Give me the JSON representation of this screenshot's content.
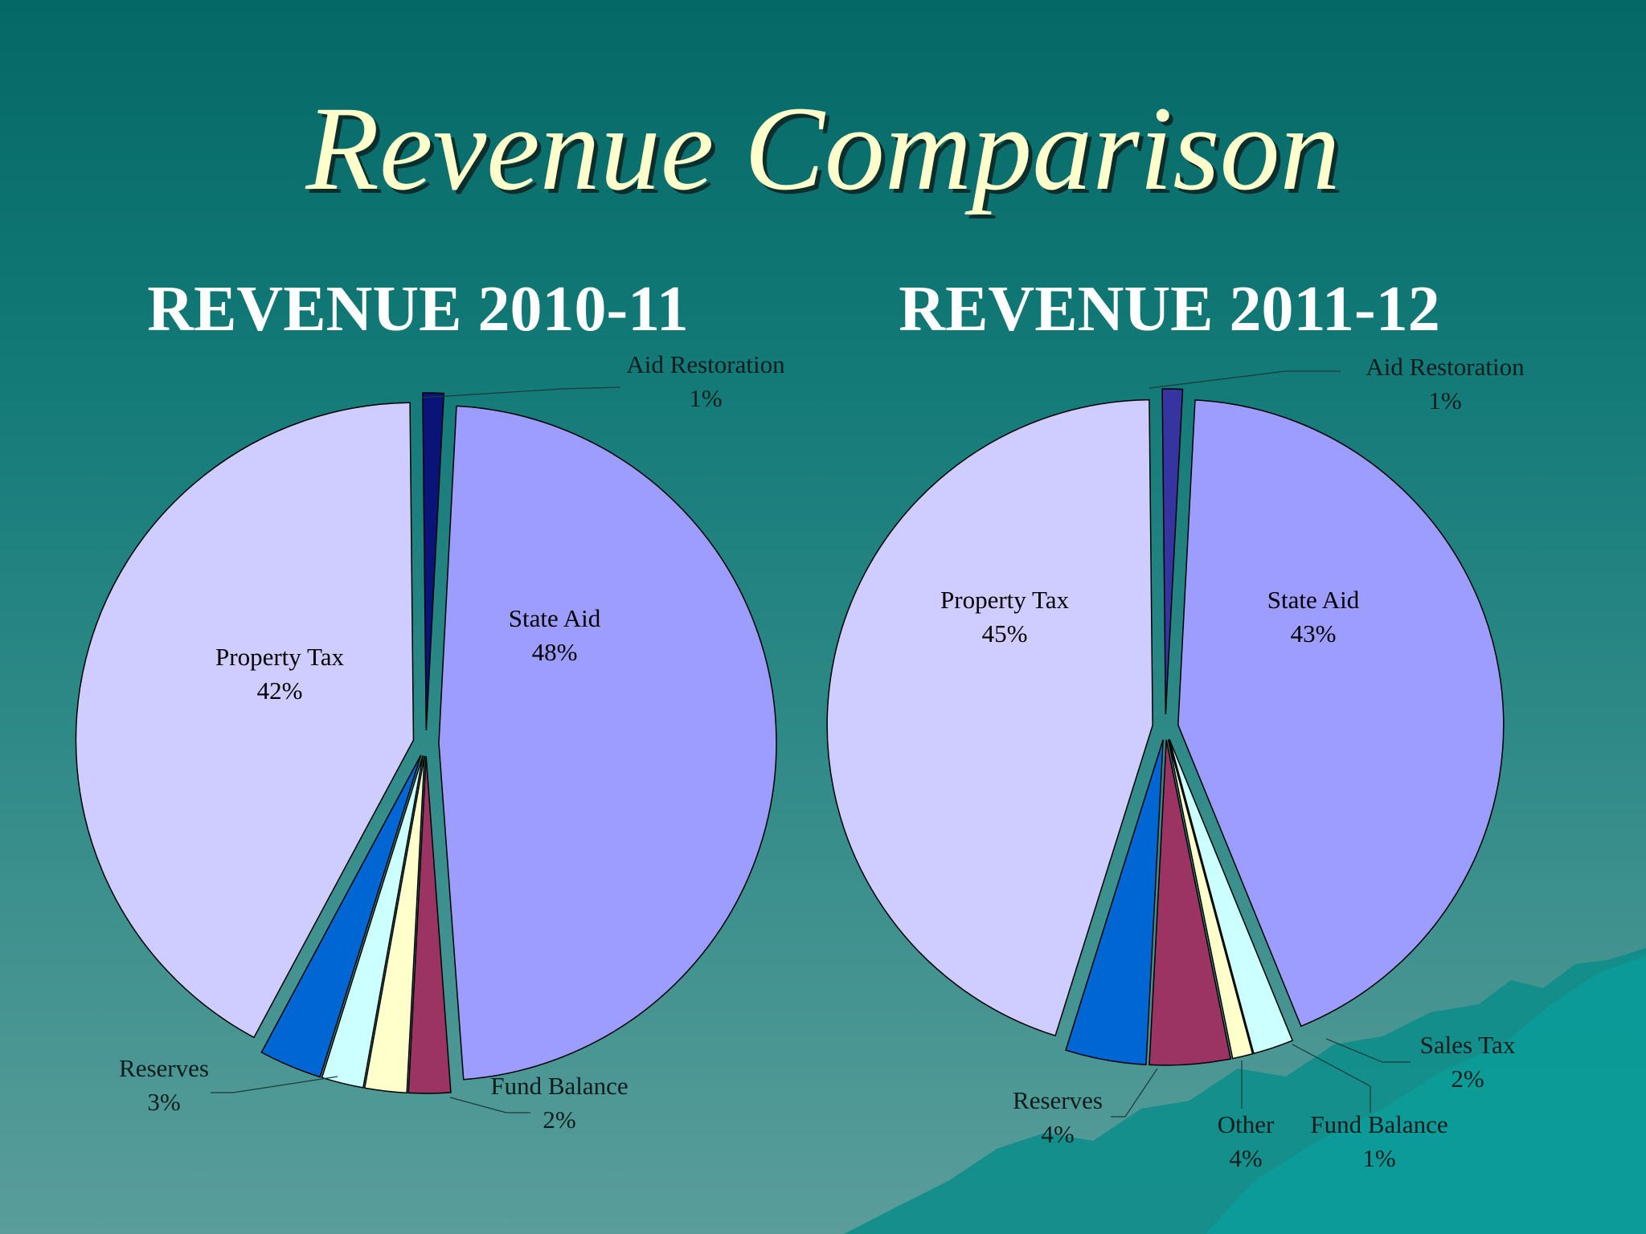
{
  "slide": {
    "title": "Revenue Comparison"
  },
  "colors": {
    "background_top": "#046866",
    "background_bottom": "#5a9d9b",
    "title": "#ffffcc",
    "state_aid": "#9d9cff",
    "property_tax": "#cfcdff",
    "aid_restoration_2010": "#0a1478",
    "aid_restoration_2011": "#3634a0",
    "reserves": "#0066d4",
    "other": "#9b3462",
    "fund_balance": "#ffffcc",
    "sales_tax": "#ccffff"
  },
  "chart_data": [
    {
      "type": "pie",
      "title": "REVENUE 2010-11",
      "slices": [
        {
          "label": "State Aid",
          "pct_text": "48%",
          "value": 48,
          "color": "#9d9cff"
        },
        {
          "label": "Fund Balance",
          "pct_text": "2%",
          "value": 2,
          "color": "#9b3462"
        },
        {
          "label": "",
          "pct_text": "",
          "value": 2,
          "color": "#ffffcc"
        },
        {
          "label": "",
          "pct_text": "",
          "value": 2,
          "color": "#ccffff"
        },
        {
          "label": "Reserves",
          "pct_text": "3%",
          "value": 3,
          "color": "#0066d4"
        },
        {
          "label": "Property Tax",
          "pct_text": "42%",
          "value": 42,
          "color": "#cfcdff"
        },
        {
          "label": "Aid Restoration",
          "pct_text": "1%",
          "value": 1,
          "color": "#0a1478"
        }
      ]
    },
    {
      "type": "pie",
      "title": "REVENUE 2011-12",
      "slices": [
        {
          "label": "State Aid",
          "pct_text": "43%",
          "value": 43,
          "color": "#9d9cff"
        },
        {
          "label": "Sales Tax",
          "pct_text": "2%",
          "value": 2,
          "color": "#ccffff"
        },
        {
          "label": "Fund Balance",
          "pct_text": "1%",
          "value": 1,
          "color": "#ffffcc"
        },
        {
          "label": "Other",
          "pct_text": "4%",
          "value": 4,
          "color": "#9b3462"
        },
        {
          "label": "Reserves",
          "pct_text": "4%",
          "value": 4,
          "color": "#0066d4"
        },
        {
          "label": "Property Tax",
          "pct_text": "45%",
          "value": 45,
          "color": "#cfcdff"
        },
        {
          "label": "Aid Restoration",
          "pct_text": "1%",
          "value": 1,
          "color": "#3634a0"
        }
      ]
    }
  ]
}
